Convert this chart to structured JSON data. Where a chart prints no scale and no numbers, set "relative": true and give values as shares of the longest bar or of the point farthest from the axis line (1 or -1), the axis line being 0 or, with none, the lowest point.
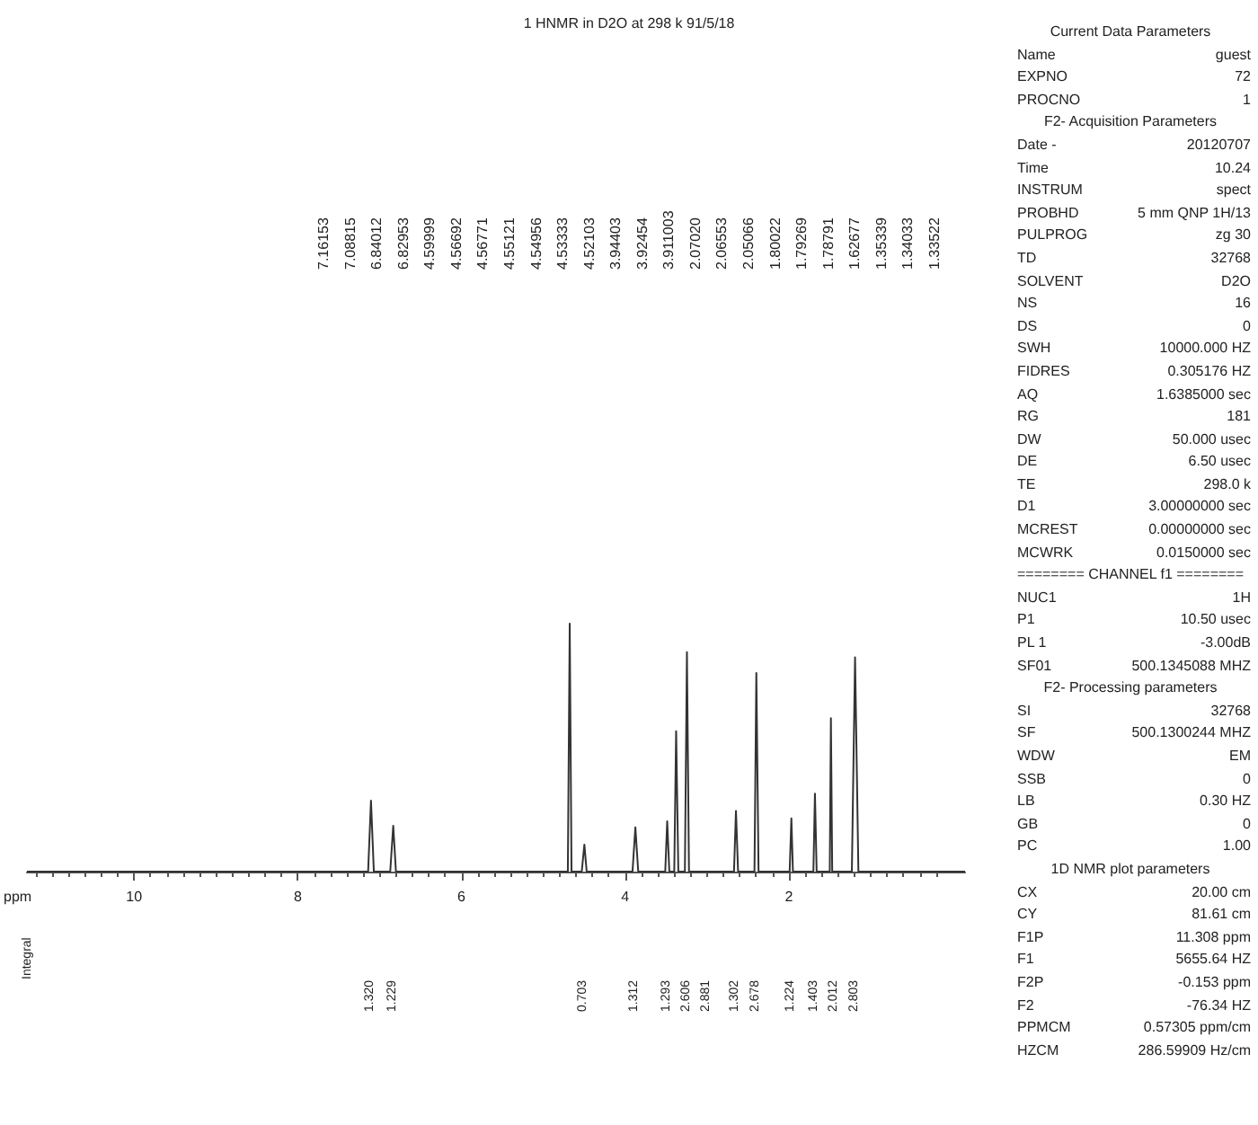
{
  "chart_data": [
    {
      "type": "line",
      "title": "1 HNMR in D2O at 298 k 91/5/18",
      "xlabel": "ppm",
      "ylabel": "Integral",
      "relative": true,
      "color": "#333333",
      "marker": "none",
      "grid": false,
      "xlim": [
        11.308,
        -0.153
      ],
      "xticks": [
        10,
        8,
        6,
        4,
        2
      ],
      "x": [
        11.308,
        7.14,
        7.105,
        7.07,
        6.87,
        6.833,
        6.8,
        4.7,
        4.677,
        4.655,
        4.53,
        4.498,
        4.47,
        3.91,
        3.875,
        3.84,
        3.51,
        3.486,
        3.46,
        3.4,
        3.377,
        3.35,
        3.27,
        3.245,
        3.22,
        2.67,
        2.646,
        2.62,
        2.42,
        2.397,
        2.37,
        1.99,
        1.969,
        1.95,
        1.7,
        1.681,
        1.66,
        1.5,
        1.486,
        1.47,
        1.23,
        1.191,
        1.15,
        -0.153
      ],
      "values": [
        0,
        0,
        0.286,
        0,
        0,
        0.185,
        0,
        0,
        1,
        0,
        0,
        0.109,
        0,
        0,
        0.178,
        0,
        0,
        0.203,
        0,
        0,
        0.566,
        0,
        0,
        0.885,
        0,
        0,
        0.245,
        0,
        0,
        0.801,
        0,
        0,
        0.215,
        0,
        0,
        0.314,
        0,
        0,
        0.619,
        0,
        0,
        0.864,
        0,
        0
      ],
      "annotations": [
        "7.16153",
        "7.08815",
        "6.84012",
        "6.82953",
        "4.59999",
        "4.56692",
        "4.56771",
        "4.55121",
        "4.54956",
        "4.53333",
        "4.52103",
        "3.94403",
        "3.92454",
        "3.911003",
        "2.07020",
        "2.06553",
        "2.05066",
        "1.80022",
        "1.79269",
        "1.78791",
        "1.62677",
        "1.35339",
        "1.34033",
        "1.33522",
        "1.320",
        "1.229",
        "0.703",
        "1.312",
        "1.293",
        "2.606",
        "2.881",
        "1.302",
        "2.678",
        "1.224",
        "1.403",
        "2.012",
        "2.803"
      ]
    },
    {
      "type": "other",
      "annotations": [
        "Current Data Parameters",
        "Name\tguest",
        "EXPNO\t72",
        "PROCNO\t1",
        "F2- Acquisition Parameters",
        "Date -\t20120707",
        "Time\t10.24",
        "INSTRUM\tspect",
        "PROBHD\t5 mm QNP 1H/13",
        "PULPROG\tzg 30",
        "TD\t32768",
        "SOLVENT\tD2O",
        "NS\t16",
        "DS\t0",
        "SWH\t10000.000 HZ",
        "FIDRES\t0.305176 HZ",
        "AQ\t1.6385000 sec",
        "RG\t181",
        "DW\t50.000 usec",
        "DE\t6.50 usec",
        "TE\t298.0 k",
        "D1\t3.00000000 sec",
        "MCREST\t0.00000000 sec",
        "MCWRK\t0.0150000 sec",
        "======== CHANNEL f1 ========",
        "NUC1\t1H",
        "P1\t10.50 usec",
        "PL 1\t-3.00dB",
        "SF01\t500.1345088 MHZ",
        "F2- Processing parameters",
        "SI\t32768",
        "SF\t500.1300244 MHZ",
        "WDW\tEM",
        "SSB\t0",
        "LB\t0.30 HZ",
        "GB\t0",
        "PC\t1.00",
        "1D NMR plot parameters",
        "CX\t20.00 cm",
        "CY\t81.61 cm",
        "F1P\t11.308 ppm",
        "F1\t5655.64 HZ",
        "F2P\t-0.153 ppm",
        "F2\t-76.34 HZ",
        "PPMCM\t0.57305 ppm/cm",
        "HZCM\t286.59909 Hz/cm"
      ]
    }
  ]
}
